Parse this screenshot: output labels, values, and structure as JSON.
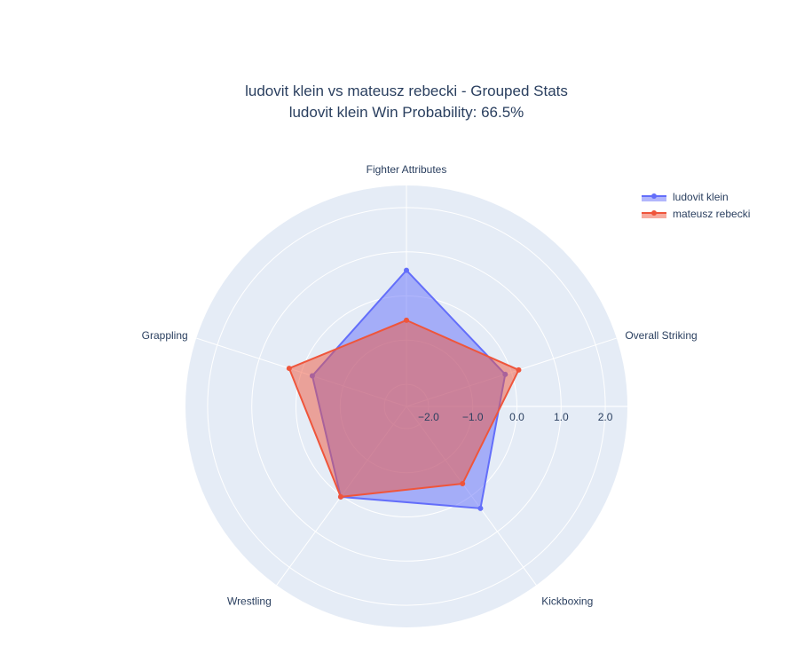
{
  "chart_data": {
    "type": "radar",
    "title": "ludovit klein vs mateusz rebecki - Grouped Stats",
    "subtitle": "ludovit klein Win Probability: 66.5%",
    "categories": [
      "Fighter Attributes",
      "Overall Striking",
      "Kickboxing",
      "Wrestling",
      "Grappling"
    ],
    "radial_range": [
      -2.5,
      2.5
    ],
    "radial_ticks": [
      -2.0,
      -1.0,
      0.0,
      1.0,
      2.0
    ],
    "radial_tick_labels": [
      "−2.0",
      "−1.0",
      "0.0",
      "1.0",
      "2.0"
    ],
    "grid": true,
    "legend_placement": "top-right",
    "series": [
      {
        "name": "ludovit klein",
        "color": "#636efa",
        "values": [
          0.58,
          -0.15,
          0.35,
          0.03,
          -0.26
        ]
      },
      {
        "name": "mateusz rebecki",
        "color": "#ef553b",
        "values": [
          -0.55,
          0.17,
          -0.34,
          0.03,
          0.29
        ]
      }
    ],
    "background_color": "#e5ecf6"
  }
}
